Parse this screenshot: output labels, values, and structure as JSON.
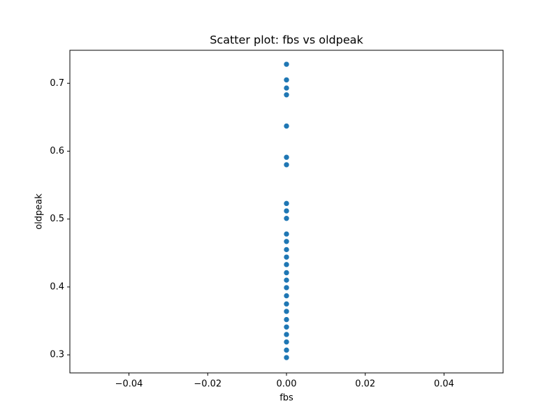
{
  "chart_data": {
    "type": "scatter",
    "title": "Scatter plot: fbs vs oldpeak",
    "x_label": "fbs",
    "y_label": "oldpeak",
    "series": [
      {
        "color": "#1f77b4",
        "x": [
          0,
          0,
          0,
          0,
          0,
          0,
          0,
          0,
          0,
          0,
          0,
          0,
          0,
          0,
          0,
          0,
          0,
          0,
          0,
          0,
          0,
          0,
          0,
          0,
          0,
          0,
          0
        ],
        "values": [
          0.728,
          0.705,
          0.693,
          0.683,
          0.637,
          0.591,
          0.58,
          0.523,
          0.512,
          0.501,
          0.478,
          0.467,
          0.455,
          0.444,
          0.433,
          0.421,
          0.41,
          0.399,
          0.387,
          0.375,
          0.364,
          0.352,
          0.341,
          0.33,
          0.319,
          0.307,
          0.296
        ]
      }
    ],
    "xlim": [
      -0.055,
      0.055
    ],
    "xticks": [
      {
        "value": -0.04,
        "label": "−0.04"
      },
      {
        "value": -0.02,
        "label": "−0.02"
      },
      {
        "value": 0,
        "label": "0.00"
      },
      {
        "value": 0.02,
        "label": "0.02"
      },
      {
        "value": 0.04,
        "label": "0.04"
      }
    ],
    "ylim": [
      0.2734,
      0.7486
    ],
    "yticks": [
      0.3,
      0.4,
      0.5,
      0.6,
      0.7
    ],
    "grid": false
  }
}
